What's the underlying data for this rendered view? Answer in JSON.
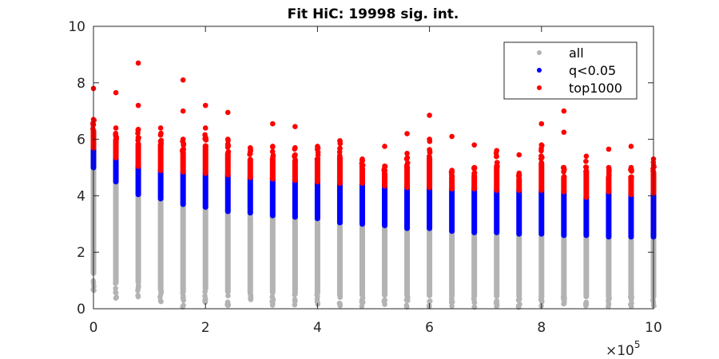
{
  "chart_data": {
    "type": "scatter",
    "title": "Fit HiC: 19998 sig. int.",
    "xlabel": "",
    "ylabel": "",
    "x_multiplier_label": "×10",
    "x_multiplier_exp": "5",
    "xlim": [
      0,
      1000000
    ],
    "ylim": [
      0,
      10
    ],
    "xticks": [
      0,
      200000,
      400000,
      600000,
      800000,
      1000000
    ],
    "xtick_labels": [
      "0",
      "2",
      "4",
      "6",
      "8",
      "10"
    ],
    "yticks": [
      0,
      2,
      4,
      6,
      8,
      10
    ],
    "ytick_labels": [
      "0",
      "2",
      "4",
      "6",
      "8",
      "10"
    ],
    "grid": false,
    "legend_position": "top-right",
    "series": [
      {
        "name": "all",
        "color": "#b3b3b3"
      },
      {
        "name": "q<0.05",
        "color": "#0000ff"
      },
      {
        "name": "top1000",
        "color": "#ff0000"
      }
    ],
    "columns": [
      {
        "x": 0,
        "all": [
          0.6,
          5.0
        ],
        "q": [
          5.0,
          5.7
        ],
        "top": [
          5.7,
          6.7
        ],
        "outliers": [
          7.8
        ]
      },
      {
        "x": 40000,
        "all": [
          0.3,
          4.5
        ],
        "q": [
          4.5,
          5.35
        ],
        "top": [
          5.35,
          6.4
        ],
        "outliers": [
          7.65
        ]
      },
      {
        "x": 80000,
        "all": [
          0.4,
          4.05
        ],
        "q": [
          4.05,
          5.05
        ],
        "top": [
          5.05,
          6.35
        ],
        "outliers": [
          7.2,
          8.7
        ]
      },
      {
        "x": 120000,
        "all": [
          0.1,
          3.9
        ],
        "q": [
          3.9,
          4.9
        ],
        "top": [
          4.9,
          6.4
        ],
        "outliers": []
      },
      {
        "x": 160000,
        "all": [
          0.05,
          3.7
        ],
        "q": [
          3.7,
          4.85
        ],
        "top": [
          4.85,
          6.0
        ],
        "outliers": [
          7.0,
          8.1
        ]
      },
      {
        "x": 200000,
        "all": [
          0.2,
          3.6
        ],
        "q": [
          3.6,
          4.8
        ],
        "top": [
          4.8,
          6.4
        ],
        "outliers": [
          7.2
        ]
      },
      {
        "x": 240000,
        "all": [
          0.1,
          3.45
        ],
        "q": [
          3.45,
          4.75
        ],
        "top": [
          4.75,
          6.0
        ],
        "outliers": [
          6.95
        ]
      },
      {
        "x": 280000,
        "all": [
          0.1,
          3.4
        ],
        "q": [
          3.4,
          4.65
        ],
        "top": [
          4.65,
          5.7
        ],
        "outliers": []
      },
      {
        "x": 320000,
        "all": [
          0.1,
          3.3
        ],
        "q": [
          3.3,
          4.6
        ],
        "top": [
          4.6,
          5.75
        ],
        "outliers": [
          6.55
        ]
      },
      {
        "x": 360000,
        "all": [
          0.1,
          3.25
        ],
        "q": [
          3.25,
          4.55
        ],
        "top": [
          4.55,
          5.7
        ],
        "outliers": [
          6.45
        ]
      },
      {
        "x": 400000,
        "all": [
          0.1,
          3.2
        ],
        "q": [
          3.2,
          4.5
        ],
        "top": [
          4.5,
          5.75
        ],
        "outliers": []
      },
      {
        "x": 440000,
        "all": [
          0.05,
          3.05
        ],
        "q": [
          3.05,
          4.45
        ],
        "top": [
          4.45,
          5.95
        ],
        "outliers": []
      },
      {
        "x": 480000,
        "all": [
          0.05,
          3.0
        ],
        "q": [
          3.0,
          4.45
        ],
        "top": [
          4.45,
          5.3
        ],
        "outliers": []
      },
      {
        "x": 520000,
        "all": [
          0.05,
          2.95
        ],
        "q": [
          2.95,
          4.35
        ],
        "top": [
          4.35,
          5.05
        ],
        "outliers": [
          5.75
        ]
      },
      {
        "x": 560000,
        "all": [
          0.05,
          2.85
        ],
        "q": [
          2.85,
          4.3
        ],
        "top": [
          4.3,
          5.5
        ],
        "outliers": [
          6.2
        ]
      },
      {
        "x": 600000,
        "all": [
          0.05,
          2.85
        ],
        "q": [
          2.85,
          4.3
        ],
        "top": [
          4.3,
          6.0
        ],
        "outliers": [
          6.85
        ]
      },
      {
        "x": 640000,
        "all": [
          0.05,
          2.75
        ],
        "q": [
          2.75,
          4.25
        ],
        "top": [
          4.25,
          4.9
        ],
        "outliers": [
          6.1
        ]
      },
      {
        "x": 680000,
        "all": [
          0.05,
          2.7
        ],
        "q": [
          2.7,
          4.25
        ],
        "top": [
          4.25,
          5.0
        ],
        "outliers": [
          5.8
        ]
      },
      {
        "x": 720000,
        "all": [
          0.05,
          2.7
        ],
        "q": [
          2.7,
          4.2
        ],
        "top": [
          4.2,
          5.6
        ],
        "outliers": []
      },
      {
        "x": 760000,
        "all": [
          0.05,
          2.65
        ],
        "q": [
          2.65,
          4.2
        ],
        "top": [
          4.2,
          4.8
        ],
        "outliers": [
          5.45
        ]
      },
      {
        "x": 800000,
        "all": [
          0.05,
          2.65
        ],
        "q": [
          2.65,
          4.2
        ],
        "top": [
          4.2,
          5.8
        ],
        "outliers": [
          6.55
        ]
      },
      {
        "x": 840000,
        "all": [
          0.05,
          2.6
        ],
        "q": [
          2.6,
          4.15
        ],
        "top": [
          4.15,
          5.0
        ],
        "outliers": [
          6.25,
          7.0
        ]
      },
      {
        "x": 880000,
        "all": [
          0.05,
          2.6
        ],
        "q": [
          2.6,
          3.95
        ],
        "top": [
          3.95,
          5.4
        ],
        "outliers": []
      },
      {
        "x": 920000,
        "all": [
          0.05,
          2.55
        ],
        "q": [
          2.55,
          4.15
        ],
        "top": [
          4.15,
          5.0
        ],
        "outliers": [
          5.65
        ]
      },
      {
        "x": 960000,
        "all": [
          0.05,
          2.55
        ],
        "q": [
          2.55,
          4.05
        ],
        "top": [
          4.05,
          5.0
        ],
        "outliers": [
          5.75
        ]
      },
      {
        "x": 1000000,
        "all": [
          0.05,
          2.55
        ],
        "q": [
          2.55,
          4.1
        ],
        "top": [
          4.1,
          5.3
        ],
        "outliers": []
      }
    ]
  }
}
